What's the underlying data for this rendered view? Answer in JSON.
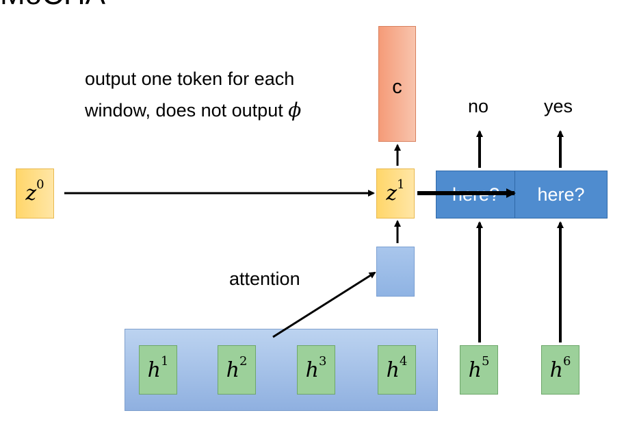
{
  "title": "MoCHA",
  "caption": {
    "line1": "output one token for each",
    "line2": "window, does not output",
    "symbol": "ϕ"
  },
  "output_token": "c",
  "decoder_states": [
    {
      "base": "z",
      "sup": "0"
    },
    {
      "base": "z",
      "sup": "1"
    }
  ],
  "attention_label": "attention",
  "encoder_states": [
    {
      "base": "h",
      "sup": "1"
    },
    {
      "base": "h",
      "sup": "2"
    },
    {
      "base": "h",
      "sup": "3"
    },
    {
      "base": "h",
      "sup": "4"
    },
    {
      "base": "h",
      "sup": "5"
    },
    {
      "base": "h",
      "sup": "6"
    }
  ],
  "decisions": [
    {
      "label": "here?",
      "answer": "no"
    },
    {
      "label": "here?",
      "answer": "yes"
    }
  ],
  "colors": {
    "decoder": "#ffd66a",
    "encoder": "#9cd09a",
    "output": "#f59b78",
    "decision": "#4f8ccf",
    "attention_box": "#a9c6ec"
  }
}
